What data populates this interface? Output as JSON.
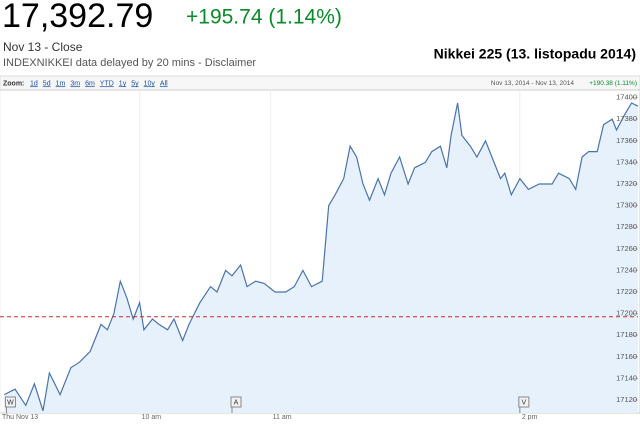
{
  "header": {
    "price": "17,392.79",
    "change": "+195.74 (1.14%)",
    "date": "Nov 13 - Close",
    "source": "INDEXNIKKEI data delayed by 20 mins - Disclaimer"
  },
  "chart_data": {
    "type": "line",
    "title": "Nikkei 225 (13. listopadu 2014)",
    "zoom_label": "Zoom:",
    "zoom_options": [
      "1d",
      "5d",
      "1m",
      "3m",
      "6m",
      "YTD",
      "1y",
      "5y",
      "10y",
      "All"
    ],
    "range_text": "Nov 13, 2014 - Nov 13, 2014",
    "range_change": "+190.38 (1.11%)",
    "color": "#4a73a8",
    "fill": "#e6f1fb",
    "x": [
      2,
      7,
      12,
      16,
      20,
      23,
      28,
      33,
      37,
      42,
      47,
      50,
      53,
      56,
      59,
      62,
      65,
      67,
      71,
      74,
      78,
      81,
      85,
      88,
      93,
      98,
      101,
      105,
      108,
      112,
      115,
      119,
      123,
      128,
      133,
      137,
      141,
      145,
      150,
      153,
      156,
      160,
      163,
      166,
      169,
      172,
      176,
      179,
      182,
      186,
      190,
      193,
      198,
      201,
      205,
      208,
      210,
      213,
      215,
      219,
      222,
      226,
      229,
      233,
      235,
      238,
      242,
      246,
      251,
      257,
      260,
      265,
      268,
      271,
      274,
      278,
      281,
      285,
      287,
      291,
      294,
      297
    ],
    "values": [
      17125,
      17130,
      17115,
      17135,
      17110,
      17145,
      17125,
      17150,
      17155,
      17165,
      17190,
      17185,
      17200,
      17230,
      17215,
      17195,
      17210,
      17185,
      17195,
      17190,
      17185,
      17195,
      17175,
      17190,
      17210,
      17225,
      17220,
      17240,
      17235,
      17245,
      17225,
      17230,
      17228,
      17220,
      17220,
      17225,
      17240,
      17225,
      17230,
      17300,
      17310,
      17325,
      17355,
      17345,
      17320,
      17305,
      17325,
      17310,
      17330,
      17345,
      17320,
      17335,
      17340,
      17350,
      17355,
      17335,
      17365,
      17395,
      17365,
      17355,
      17345,
      17360,
      17345,
      17325,
      17330,
      17310,
      17325,
      17315,
      17320,
      17320,
      17330,
      17325,
      17315,
      17345,
      17350,
      17350,
      17375,
      17380,
      17370,
      17385,
      17395,
      17392
    ],
    "xlim": [
      0,
      297
    ],
    "xticks": [
      {
        "value": 0,
        "label": "Thu Nov 13"
      },
      {
        "value": 65,
        "label": "10 am"
      },
      {
        "value": 126,
        "label": "11 am"
      },
      {
        "value": 242,
        "label": "2 pm"
      }
    ],
    "ylim": [
      17108,
      17407
    ],
    "yticks": [
      17120,
      17140,
      17160,
      17180,
      17200,
      17220,
      17240,
      17260,
      17280,
      17300,
      17320,
      17340,
      17360,
      17380,
      17400
    ],
    "previous_close": 17197.05,
    "flags": [
      {
        "label": "W",
        "x": 3
      },
      {
        "label": "A",
        "x": 108
      },
      {
        "label": "V",
        "x": 242
      }
    ]
  }
}
